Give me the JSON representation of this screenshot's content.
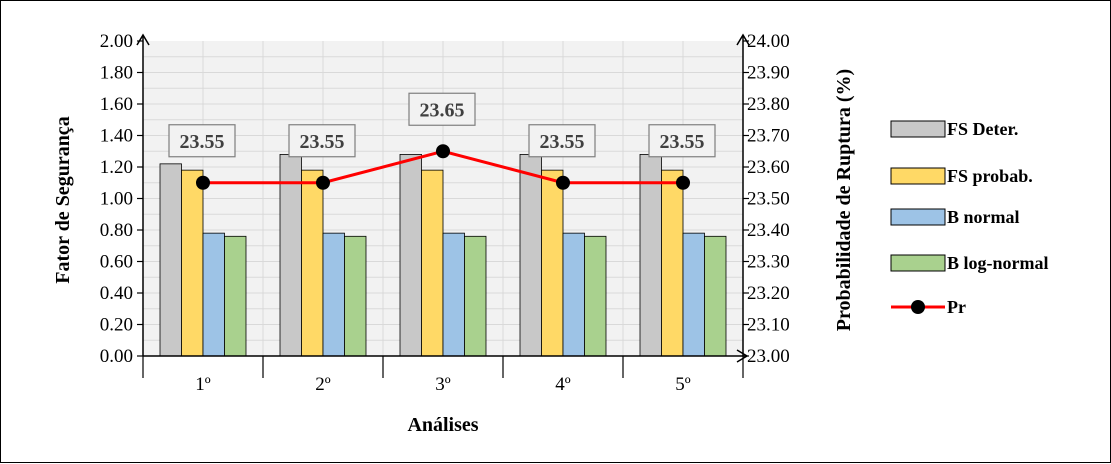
{
  "chart_data": {
    "type": "bar",
    "categories": [
      "1º",
      "2º",
      "3º",
      "4º",
      "5º"
    ],
    "xlabel": "Análises",
    "ylabel": "Fator de Segurança",
    "y2label": "Probabilidade de Ruptura (%)",
    "ylim": [
      0,
      2
    ],
    "y2lim": [
      23.0,
      24.0
    ],
    "yticks": [
      "0.00",
      "0.20",
      "0.40",
      "0.60",
      "0.80",
      "1.00",
      "1.20",
      "1.40",
      "1.60",
      "1.80",
      "2.00"
    ],
    "y2ticks": [
      "23.00",
      "23.10",
      "23.20",
      "23.30",
      "23.40",
      "23.50",
      "23.60",
      "23.70",
      "23.80",
      "23.90",
      "24.00"
    ],
    "grid": true,
    "legend_position": "right",
    "series": [
      {
        "name": "FS Deter.",
        "type": "bar",
        "color": "#c8c8c8",
        "values": [
          1.22,
          1.28,
          1.28,
          1.28,
          1.28
        ]
      },
      {
        "name": "FS probab.",
        "type": "bar",
        "color": "#ffd966",
        "values": [
          1.18,
          1.18,
          1.18,
          1.18,
          1.18
        ]
      },
      {
        "name": "B normal",
        "type": "bar",
        "color": "#9dc3e6",
        "values": [
          0.78,
          0.78,
          0.78,
          0.78,
          0.78
        ]
      },
      {
        "name": "B log-normal",
        "type": "bar",
        "color": "#a9d18e",
        "values": [
          0.76,
          0.76,
          0.76,
          0.76,
          0.76
        ]
      },
      {
        "name": "Pr",
        "type": "line",
        "axis": "right",
        "color": "#ff0000",
        "marker_color": "#000000",
        "values": [
          23.55,
          23.55,
          23.65,
          23.55,
          23.55
        ]
      }
    ],
    "data_labels": [
      "23.55",
      "23.55",
      "23.65",
      "23.55",
      "23.55"
    ]
  }
}
